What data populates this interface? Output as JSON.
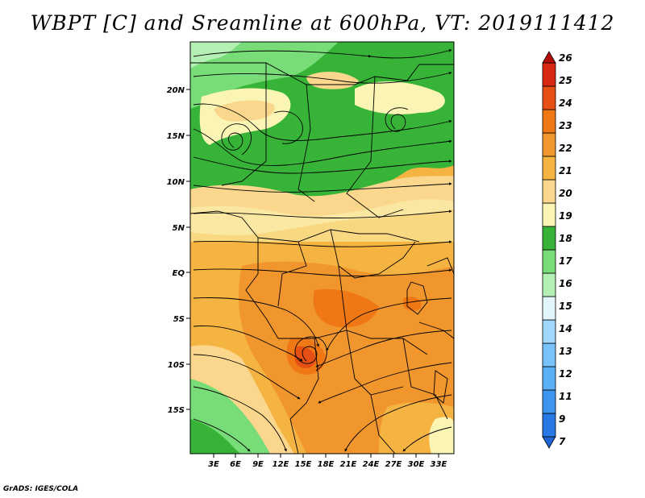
{
  "title": "WBPT [C] and Sreamline at 600hPa, VT: 2019111412",
  "footer": "GrADS: IGES/COLA",
  "map": {
    "lat_labels": [
      "20N",
      "15N",
      "10N",
      "5N",
      "EQ",
      "5S",
      "10S",
      "15S"
    ],
    "lon_labels": [
      "3E",
      "6E",
      "9E",
      "12E",
      "15E",
      "18E",
      "21E",
      "24E",
      "27E",
      "30E",
      "33E"
    ],
    "field": "wet-bulb potential temperature",
    "overlay": "streamlines"
  },
  "colorbar": {
    "labels": [
      "7",
      "9",
      "11",
      "12",
      "13",
      "14",
      "15",
      "16",
      "17",
      "18",
      "19",
      "20",
      "21",
      "22",
      "23",
      "24",
      "25",
      "26"
    ],
    "colors": [
      "#1e64d2",
      "#2878e6",
      "#3c96f0",
      "#5aaff5",
      "#78c3fa",
      "#a0d7fa",
      "#e1f5fa",
      "#b4f0b4",
      "#78dc78",
      "#37b437",
      "#faf5b4",
      "#fad78c",
      "#f5b441",
      "#f0962d",
      "#f07814",
      "#e65014",
      "#d72814",
      "#b40a0a"
    ]
  }
}
